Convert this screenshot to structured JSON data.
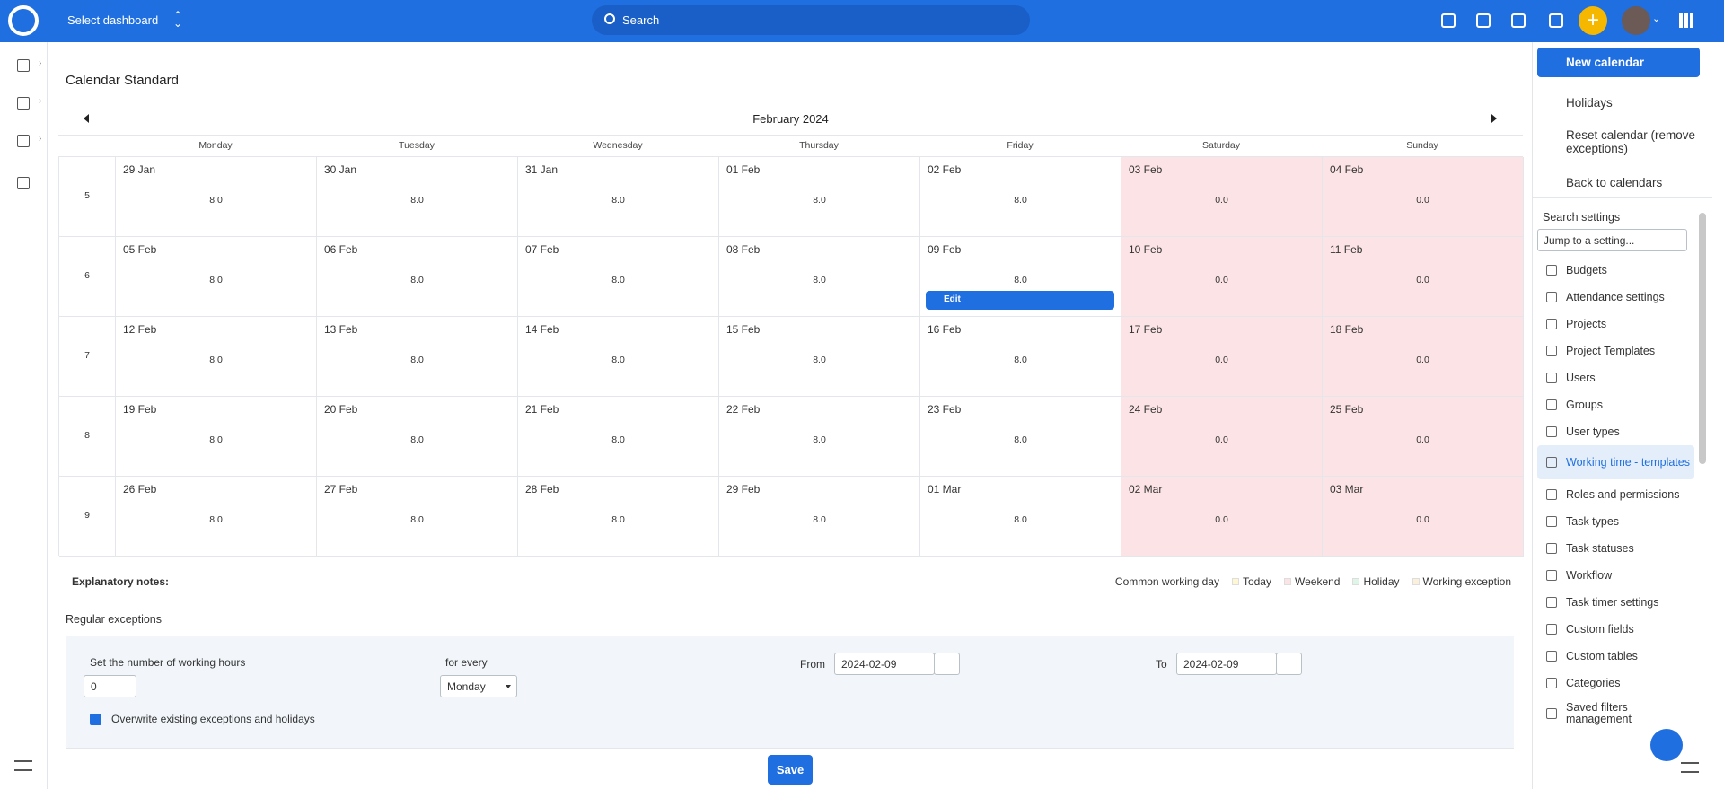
{
  "topbar": {
    "dashboard_select": "Select dashboard",
    "search_placeholder": "Search"
  },
  "page": {
    "title": "Calendar Standard"
  },
  "calendar": {
    "month": "February 2024",
    "weekdays": [
      "Monday",
      "Tuesday",
      "Wednesday",
      "Thursday",
      "Friday",
      "Saturday",
      "Sunday"
    ],
    "weeks": [
      {
        "number": 5,
        "days": [
          {
            "date": "29 Jan",
            "hours": "8.0"
          },
          {
            "date": "30 Jan",
            "hours": "8.0"
          },
          {
            "date": "31 Jan",
            "hours": "8.0"
          },
          {
            "date": "01 Feb",
            "hours": "8.0"
          },
          {
            "date": "02 Feb",
            "hours": "8.0"
          },
          {
            "date": "03 Feb",
            "hours": "0.0"
          },
          {
            "date": "04 Feb",
            "hours": "0.0"
          }
        ]
      },
      {
        "number": 6,
        "days": [
          {
            "date": "05 Feb",
            "hours": "8.0"
          },
          {
            "date": "06 Feb",
            "hours": "8.0"
          },
          {
            "date": "07 Feb",
            "hours": "8.0"
          },
          {
            "date": "08 Feb",
            "hours": "8.0"
          },
          {
            "date": "09 Feb",
            "hours": "8.0"
          },
          {
            "date": "10 Feb",
            "hours": "0.0"
          },
          {
            "date": "11 Feb",
            "hours": "0.0"
          }
        ]
      },
      {
        "number": 7,
        "days": [
          {
            "date": "12 Feb",
            "hours": "8.0"
          },
          {
            "date": "13 Feb",
            "hours": "8.0"
          },
          {
            "date": "14 Feb",
            "hours": "8.0"
          },
          {
            "date": "15 Feb",
            "hours": "8.0"
          },
          {
            "date": "16 Feb",
            "hours": "8.0"
          },
          {
            "date": "17 Feb",
            "hours": "0.0"
          },
          {
            "date": "18 Feb",
            "hours": "0.0"
          }
        ]
      },
      {
        "number": 8,
        "days": [
          {
            "date": "19 Feb",
            "hours": "8.0"
          },
          {
            "date": "20 Feb",
            "hours": "8.0"
          },
          {
            "date": "21 Feb",
            "hours": "8.0"
          },
          {
            "date": "22 Feb",
            "hours": "8.0"
          },
          {
            "date": "23 Feb",
            "hours": "8.0"
          },
          {
            "date": "24 Feb",
            "hours": "0.0"
          },
          {
            "date": "25 Feb",
            "hours": "0.0"
          }
        ]
      },
      {
        "number": 9,
        "days": [
          {
            "date": "26 Feb",
            "hours": "8.0"
          },
          {
            "date": "27 Feb",
            "hours": "8.0"
          },
          {
            "date": "28 Feb",
            "hours": "8.0"
          },
          {
            "date": "29 Feb",
            "hours": "8.0"
          },
          {
            "date": "01 Mar",
            "hours": "8.0"
          },
          {
            "date": "02 Mar",
            "hours": "0.0"
          },
          {
            "date": "03 Mar",
            "hours": "0.0"
          }
        ]
      }
    ],
    "edit_label": "Edit"
  },
  "notes": {
    "label": "Explanatory notes:",
    "common": "Common working day",
    "items": [
      "Today",
      "Weekend",
      "Holiday",
      "Working exception"
    ]
  },
  "exceptions": {
    "title": "Regular exceptions",
    "hours_label": "Set the number of working hours",
    "hours_value": "0",
    "for_every_label": "for every",
    "for_every_value": "Monday",
    "from_label": "From",
    "from_value": "2024-02-09",
    "to_label": "To",
    "to_value": "2024-02-09",
    "overwrite_label": "Overwrite existing exceptions and holidays",
    "save": "Save"
  },
  "sidebar": {
    "actions": [
      "New calendar",
      "Holidays",
      "Reset calendar (remove exceptions)",
      "Back to calendars"
    ],
    "search_label": "Search settings",
    "jump_placeholder": "Jump to a setting...",
    "settings": [
      "Budgets",
      "Attendance settings",
      "Projects",
      "Project Templates",
      "Users",
      "Groups",
      "User types",
      "Working time - templates",
      "Roles and permissions",
      "Task types",
      "Task statuses",
      "Workflow",
      "Task timer settings",
      "Custom fields",
      "Custom tables",
      "Categories",
      "Saved filters management"
    ]
  }
}
